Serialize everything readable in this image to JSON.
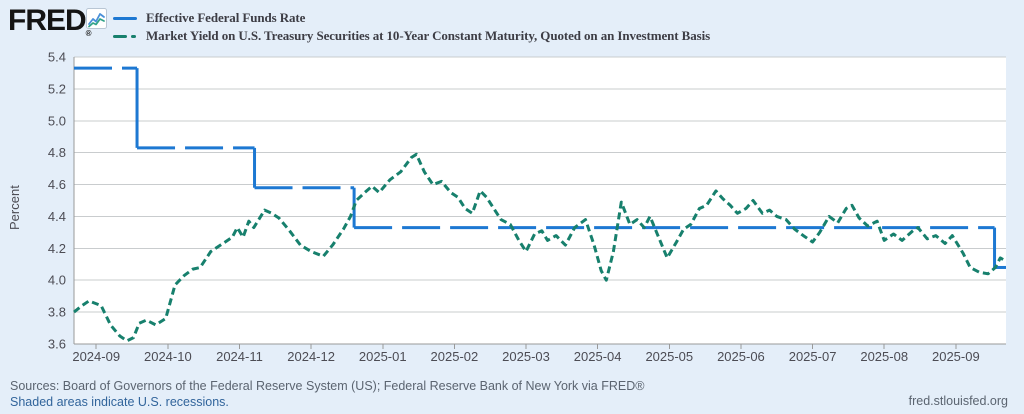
{
  "header": {
    "logo_text": "FRED",
    "logo_trademark": "®",
    "legend": [
      {
        "label": "Effective Federal Funds Rate",
        "color": "#1d78d2",
        "line_style": "long-dash"
      },
      {
        "label": "Market Yield on U.S. Treasury Securities at 10-Year Constant Maturity, Quoted on an Investment Basis",
        "color": "#17806d",
        "line_style": "short-dash"
      }
    ]
  },
  "chart_data": {
    "type": "line",
    "ylabel": "Percent",
    "ylim": [
      3.6,
      5.4
    ],
    "y_ticks": [
      5.4,
      5.2,
      5.0,
      4.8,
      4.6,
      4.4,
      4.2,
      4.0,
      3.8,
      3.6
    ],
    "x_tick_labels": [
      "2024-09",
      "2024-10",
      "2024-11",
      "2024-12",
      "2025-01",
      "2025-02",
      "2025-03",
      "2025-04",
      "2025-05",
      "2025-06",
      "2025-07",
      "2025-08",
      "2025-09"
    ],
    "x_unit": "months since 2024-09-01",
    "xlim": [
      -0.31,
      12.7
    ],
    "grid": true,
    "legend_position": "top-left",
    "colors": {
      "background": "#e4eef9",
      "plot_background": "#ffffff",
      "grid": "#c9ccce",
      "axis": "#999999",
      "tick_label": "#4c4c54"
    },
    "series": [
      {
        "name": "Effective Federal Funds Rate",
        "color": "#1d78d2",
        "line_style": "long-dash",
        "step": true,
        "points": [
          [
            -0.31,
            5.33
          ],
          [
            0.57,
            5.33
          ],
          [
            0.57,
            4.83
          ],
          [
            2.21,
            4.83
          ],
          [
            2.21,
            4.58
          ],
          [
            3.6,
            4.58
          ],
          [
            3.6,
            4.33
          ],
          [
            12.54,
            4.33
          ],
          [
            12.54,
            4.08
          ],
          [
            12.7,
            4.08
          ]
        ]
      },
      {
        "name": "Market Yield on U.S. Treasury Securities at 10-Year Constant Maturity, Quoted on an Investment Basis",
        "color": "#17806d",
        "line_style": "short-dash",
        "step": false,
        "points": [
          [
            -0.31,
            3.8
          ],
          [
            -0.2,
            3.84
          ],
          [
            -0.1,
            3.87
          ],
          [
            0.07,
            3.84
          ],
          [
            0.2,
            3.72
          ],
          [
            0.33,
            3.65
          ],
          [
            0.43,
            3.62
          ],
          [
            0.52,
            3.64
          ],
          [
            0.6,
            3.73
          ],
          [
            0.7,
            3.75
          ],
          [
            0.83,
            3.72
          ],
          [
            0.97,
            3.76
          ],
          [
            1.1,
            3.97
          ],
          [
            1.23,
            4.03
          ],
          [
            1.35,
            4.07
          ],
          [
            1.45,
            4.08
          ],
          [
            1.6,
            4.18
          ],
          [
            1.7,
            4.21
          ],
          [
            1.8,
            4.24
          ],
          [
            1.9,
            4.27
          ],
          [
            1.97,
            4.33
          ],
          [
            2.05,
            4.27
          ],
          [
            2.13,
            4.37
          ],
          [
            2.2,
            4.33
          ],
          [
            2.35,
            4.44
          ],
          [
            2.45,
            4.42
          ],
          [
            2.55,
            4.39
          ],
          [
            2.7,
            4.31
          ],
          [
            2.85,
            4.22
          ],
          [
            3.0,
            4.18
          ],
          [
            3.17,
            4.15
          ],
          [
            3.3,
            4.22
          ],
          [
            3.45,
            4.32
          ],
          [
            3.55,
            4.4
          ],
          [
            3.63,
            4.5
          ],
          [
            3.75,
            4.55
          ],
          [
            3.85,
            4.59
          ],
          [
            3.95,
            4.55
          ],
          [
            4.1,
            4.63
          ],
          [
            4.25,
            4.68
          ],
          [
            4.4,
            4.77
          ],
          [
            4.47,
            4.79
          ],
          [
            4.58,
            4.68
          ],
          [
            4.7,
            4.6
          ],
          [
            4.82,
            4.62
          ],
          [
            4.95,
            4.55
          ],
          [
            5.05,
            4.52
          ],
          [
            5.15,
            4.45
          ],
          [
            5.25,
            4.42
          ],
          [
            5.36,
            4.56
          ],
          [
            5.45,
            4.52
          ],
          [
            5.55,
            4.45
          ],
          [
            5.65,
            4.38
          ],
          [
            5.78,
            4.35
          ],
          [
            5.9,
            4.25
          ],
          [
            6.0,
            4.18
          ],
          [
            6.12,
            4.29
          ],
          [
            6.22,
            4.31
          ],
          [
            6.3,
            4.25
          ],
          [
            6.42,
            4.28
          ],
          [
            6.55,
            4.22
          ],
          [
            6.68,
            4.33
          ],
          [
            6.83,
            4.38
          ],
          [
            6.95,
            4.22
          ],
          [
            7.05,
            4.06
          ],
          [
            7.12,
            4.0
          ],
          [
            7.22,
            4.18
          ],
          [
            7.33,
            4.49
          ],
          [
            7.45,
            4.35
          ],
          [
            7.55,
            4.38
          ],
          [
            7.65,
            4.33
          ],
          [
            7.73,
            4.4
          ],
          [
            7.85,
            4.27
          ],
          [
            7.97,
            4.14
          ],
          [
            8.1,
            4.24
          ],
          [
            8.2,
            4.32
          ],
          [
            8.3,
            4.35
          ],
          [
            8.42,
            4.45
          ],
          [
            8.52,
            4.47
          ],
          [
            8.65,
            4.56
          ],
          [
            8.75,
            4.51
          ],
          [
            8.85,
            4.47
          ],
          [
            8.95,
            4.42
          ],
          [
            9.07,
            4.45
          ],
          [
            9.17,
            4.5
          ],
          [
            9.3,
            4.42
          ],
          [
            9.4,
            4.44
          ],
          [
            9.5,
            4.4
          ],
          [
            9.63,
            4.38
          ],
          [
            9.75,
            4.32
          ],
          [
            9.87,
            4.28
          ],
          [
            10.0,
            4.24
          ],
          [
            10.1,
            4.3
          ],
          [
            10.23,
            4.4
          ],
          [
            10.35,
            4.36
          ],
          [
            10.47,
            4.45
          ],
          [
            10.55,
            4.47
          ],
          [
            10.65,
            4.39
          ],
          [
            10.77,
            4.34
          ],
          [
            10.9,
            4.37
          ],
          [
            11.0,
            4.25
          ],
          [
            11.13,
            4.29
          ],
          [
            11.25,
            4.25
          ],
          [
            11.4,
            4.31
          ],
          [
            11.47,
            4.33
          ],
          [
            11.6,
            4.26
          ],
          [
            11.72,
            4.28
          ],
          [
            11.85,
            4.23
          ],
          [
            11.95,
            4.28
          ],
          [
            12.1,
            4.17
          ],
          [
            12.2,
            4.08
          ],
          [
            12.33,
            4.05
          ],
          [
            12.45,
            4.04
          ],
          [
            12.55,
            4.08
          ],
          [
            12.62,
            4.14
          ],
          [
            12.7,
            4.12
          ]
        ]
      }
    ]
  },
  "footer": {
    "sources": "Sources: Board of Governors of the Federal Reserve System (US); Federal Reserve Bank of New York via FRED®",
    "shaded_note": "Shaded areas indicate U.S. recessions.",
    "site": "fred.stlouisfed.org"
  }
}
